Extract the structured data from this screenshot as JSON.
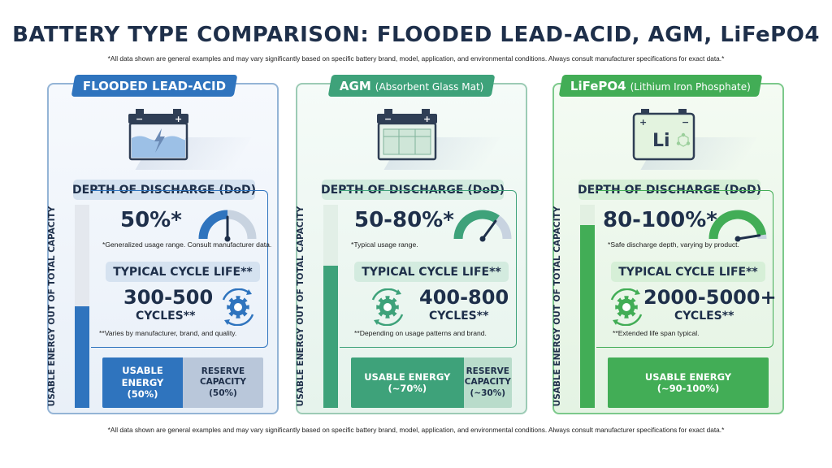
{
  "title": "BATTERY TYPE COMPARISON: FLOODED LEAD-ACID, AGM, LiFePO4",
  "disclaimer_top": "*All data shown are general examples and may vary significantly based on specific battery brand, model, application, and environmental conditions. Always consult manufacturer specifications for exact data.*",
  "disclaimer_bottom": "*All data shown are general examples and may vary significantly based on specific battery brand, model, application, and environmental conditions. Always consult manufacturer specifications for exact data.*",
  "colors": {
    "flooded": "#2f74be",
    "agm": "#3ea27a",
    "lifepo4": "#42ad56",
    "text": "#1e2f4a"
  },
  "panels": [
    {
      "name": "FLOODED LEAD-ACID",
      "subtitle": "",
      "icon": "flooded-battery-icon",
      "dod_label": "DEPTH OF DISCHARGE (DoD)",
      "dod_value": "50%*",
      "dod_fraction": 0.5,
      "dod_note": "*Generalized usage range. Consult manufacturer data.",
      "cycle_label": "TYPICAL CYCLE LIFE**",
      "cycle_value": "300-500",
      "cycle_unit": "CYCLES**",
      "cycle_note": "**Varies by manufacturer, brand, and quality.",
      "vertical_label": "USABLE ENERGY OUT OF TOTAL CAPACITY",
      "usable_label": "USABLE ENERGY",
      "usable_value": "(50%)",
      "usable_fraction": 0.5,
      "reserve_label_1": "RESERVE",
      "reserve_label_2": "CAPACITY",
      "reserve_value": "(50%)"
    },
    {
      "name": "AGM",
      "subtitle": "(Absorbent Glass Mat)",
      "icon": "agm-battery-icon",
      "dod_label": "DEPTH OF DISCHARGE (DoD)",
      "dod_value": "50-80%*",
      "dod_fraction": 0.7,
      "dod_note": "*Typical usage range.",
      "cycle_label": "TYPICAL CYCLE LIFE**",
      "cycle_value": "400-800",
      "cycle_unit": "CYCLES**",
      "cycle_note": "**Depending on usage patterns and brand.",
      "vertical_label": "USABLE ENERGY OUT OF TOTAL CAPACITY",
      "usable_label": "USABLE ENERGY",
      "usable_value": "(~70%)",
      "usable_fraction": 0.7,
      "reserve_label_1": "RESERVE",
      "reserve_label_2": "CAPACITY",
      "reserve_value": "(~30%)"
    },
    {
      "name": "LiFePO4",
      "subtitle": "(Lithium Iron Phosphate)",
      "icon": "lithium-battery-icon",
      "icon_text": "Li",
      "dod_label": "DEPTH OF DISCHARGE (DoD)",
      "dod_value": "80-100%*",
      "dod_fraction": 0.95,
      "dod_note": "*Safe discharge depth, varying by product.",
      "cycle_label": "TYPICAL CYCLE LIFE**",
      "cycle_value": "2000-5000+",
      "cycle_unit": "CYCLES**",
      "cycle_note": "**Extended life span typical.",
      "vertical_label": "USABLE ENERGY OUT OF TOTAL CAPACITY",
      "usable_label": "USABLE ENERGY",
      "usable_value": "(~90-100%)",
      "usable_fraction": 0.9
    }
  ]
}
